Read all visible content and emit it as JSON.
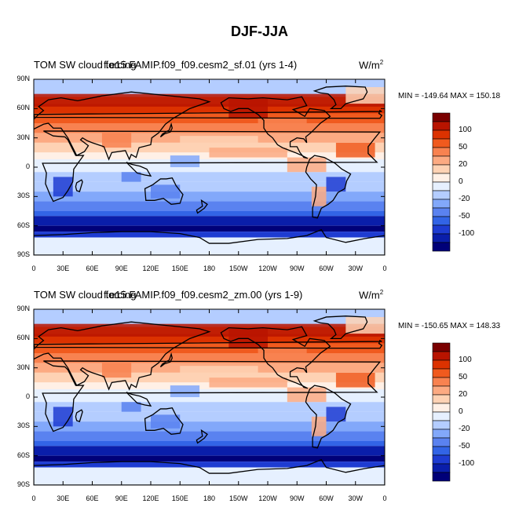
{
  "figure_title": "DJF-JJA",
  "panels": [
    {
      "title_left": "TOM SW cloud forcing",
      "title_overlap": "f.e15.FAMIP.f09_f09.cesm2_sf.01 (yrs 1-4)",
      "units_base": "W/m",
      "units_exp": "2",
      "minmax": "MIN = -149.64 MAX = 150.18"
    },
    {
      "title_left": "TOM SW cloud forcing",
      "title_overlap": "f.e15.FAMIP.f09_f09.cesm2_zm.00 (yrs 1-9)",
      "units_base": "W/m",
      "units_exp": "2",
      "minmax": "MIN = -150.65 MAX = 148.33"
    }
  ],
  "lat_labels": [
    "90N",
    "60N",
    "30N",
    "0",
    "30S",
    "60S",
    "90S"
  ],
  "lon_labels": [
    "0",
    "30E",
    "60E",
    "90E",
    "120E",
    "150E",
    "180",
    "150W",
    "120W",
    "90W",
    "60W",
    "30W",
    "0"
  ],
  "colorbar": {
    "labels": [
      "100",
      "50",
      "20",
      "0",
      "-20",
      "-50",
      "-100"
    ],
    "colors": [
      "#7a0000",
      "#b81400",
      "#dc3200",
      "#f05a1e",
      "#f88250",
      "#fcaa82",
      "#fed2b4",
      "#fff0e6",
      "#e6f0ff",
      "#b4cdff",
      "#82a8fa",
      "#5a82f0",
      "#3264e6",
      "#1e3cd2",
      "#0a1eaa",
      "#000078"
    ]
  },
  "chart_data": {
    "type": "heatmap",
    "title": "DJF-JJA",
    "xlabel": "",
    "ylabel": "",
    "x_ticks": [
      "0",
      "30E",
      "60E",
      "90E",
      "120E",
      "150E",
      "180",
      "150W",
      "120W",
      "90W",
      "60W",
      "30W",
      "0"
    ],
    "y_ticks": [
      "90N",
      "60N",
      "30N",
      "0",
      "30S",
      "60S",
      "90S"
    ],
    "colorbar_levels": [
      "100",
      "50",
      "20",
      "0",
      "-20",
      "-50",
      "-100"
    ],
    "maps": [
      {
        "name": "f.e15.FAMIP.f09_f09.cesm2_sf.01 (yrs 1-4)",
        "min": -149.64,
        "max": 150.18,
        "zonal_pattern": [
          {
            "lat": "90N-70N",
            "level": 100
          },
          {
            "lat": "60N",
            "level": 60
          },
          {
            "lat": "30N",
            "level": 30
          },
          {
            "lat": "0",
            "level": -5
          },
          {
            "lat": "30S",
            "level": -30
          },
          {
            "lat": "60S",
            "level": -110
          },
          {
            "lat": "90S-70S",
            "level": -10
          }
        ]
      },
      {
        "name": "f.e15.FAMIP.f09_f09.cesm2_zm.00 (yrs 1-9)",
        "min": -150.65,
        "max": 148.33,
        "zonal_pattern": [
          {
            "lat": "90N-70N",
            "level": 100
          },
          {
            "lat": "60N",
            "level": 60
          },
          {
            "lat": "30N",
            "level": 30
          },
          {
            "lat": "0",
            "level": -5
          },
          {
            "lat": "30S",
            "level": -30
          },
          {
            "lat": "60S",
            "level": -110
          },
          {
            "lat": "90S-70S",
            "level": -10
          }
        ]
      }
    ]
  }
}
